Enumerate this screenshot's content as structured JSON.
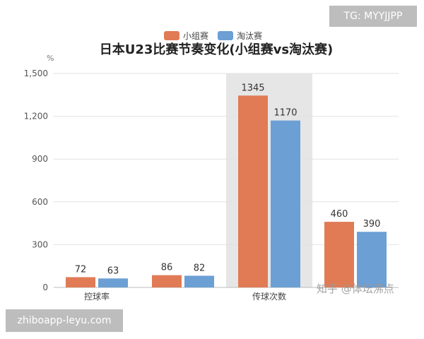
{
  "overlays": {
    "top_right_tag": "TG: MYYJJPP",
    "bottom_left_tag": "zhiboapp-leyu.com",
    "watermark": "知乎 @体坛沸点"
  },
  "colors": {
    "series_group": "#e07b55",
    "series_knockout": "#6c9fd4",
    "highlight_band": "#e6e6e6",
    "grid": "#e2e2e2"
  },
  "chart_data": {
    "type": "bar",
    "title": "日本U23比赛节奏变化(小组赛vs淘汰赛)",
    "unit_label": "%",
    "xlabel": "",
    "ylabel": "",
    "ylim": [
      0,
      1500
    ],
    "yticks": [
      0,
      300,
      600,
      900,
      1200,
      1500
    ],
    "ytick_labels": [
      "0",
      "300",
      "600",
      "900",
      "1,200",
      "1,500"
    ],
    "grid": true,
    "legend_position": "top-center",
    "categories": [
      "控球率",
      "",
      "传球次数",
      ""
    ],
    "highlighted_category_index": 2,
    "series": [
      {
        "name": "小组赛",
        "values": [
          72,
          86,
          1345,
          460
        ]
      },
      {
        "name": "淘汰赛",
        "values": [
          63,
          82,
          1170,
          390
        ]
      }
    ]
  }
}
